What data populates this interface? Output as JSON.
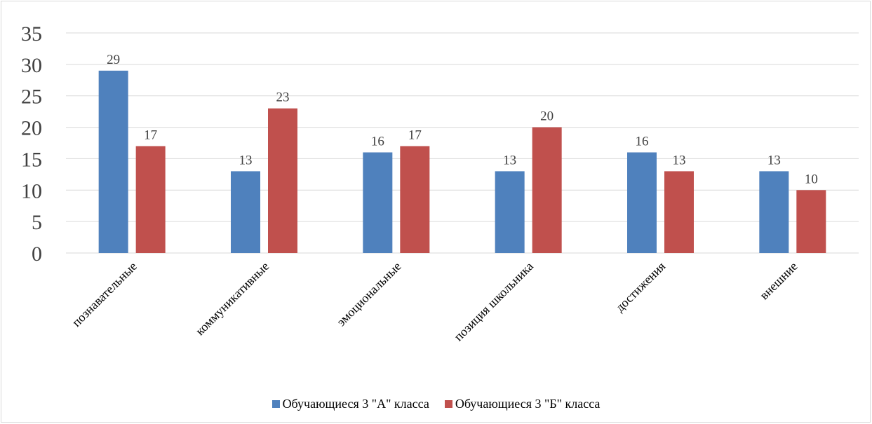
{
  "chart_data": {
    "type": "bar",
    "categories": [
      "познавательные",
      "коммуникативные",
      "эмоциональные",
      "позиция школьника",
      "достижения",
      "внешние"
    ],
    "series": [
      {
        "name": "Обучающиеся 3 \"А\" класса",
        "values": [
          29,
          13,
          16,
          13,
          16,
          13
        ],
        "color": "#4f81bd"
      },
      {
        "name": "Обучающиеся 3 \"Б\" класса",
        "values": [
          17,
          23,
          17,
          20,
          13,
          10
        ],
        "color": "#c0504d"
      }
    ],
    "ylim": [
      0,
      35
    ],
    "yticks": [
      0,
      5,
      10,
      15,
      20,
      25,
      30,
      35
    ],
    "grid": true,
    "legend_position": "bottom",
    "data_labels": true
  }
}
